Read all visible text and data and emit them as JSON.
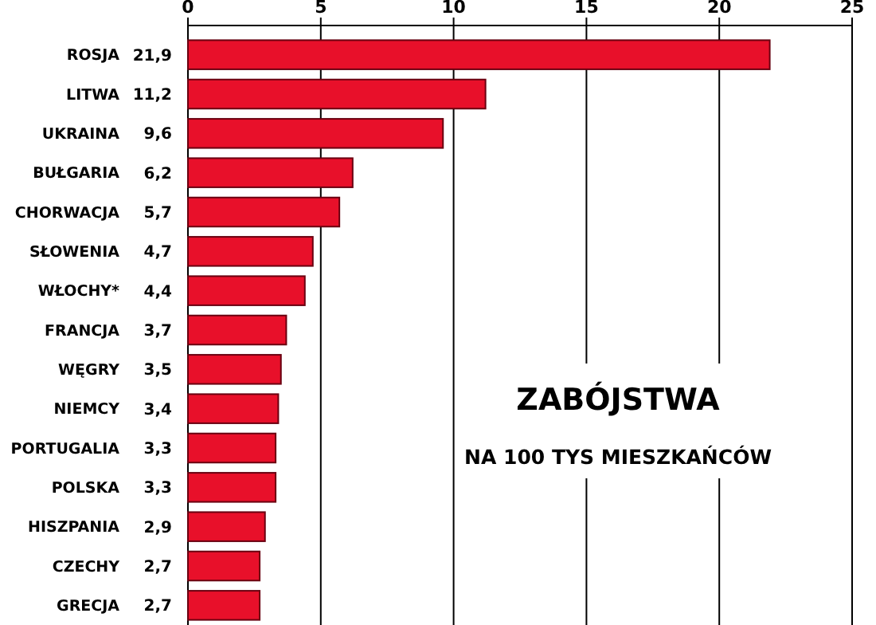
{
  "chart_data": {
    "type": "bar",
    "orientation": "horizontal",
    "title": "ZABÓJSTWA",
    "subtitle": "NA 100 TYS MIESZKAŃCÓW",
    "categories": [
      "ROSJA",
      "LITWA",
      "UKRAINA",
      "BUŁGARIA",
      "CHORWACJA",
      "SŁOWENIA",
      "WŁOCHY*",
      "FRANCJA",
      "WĘGRY",
      "NIEMCY",
      "PORTUGALIA",
      "POLSKA",
      "HISZPANIA",
      "CZECHY",
      "GRECJA"
    ],
    "values": [
      21.9,
      11.2,
      9.6,
      6.2,
      5.7,
      4.7,
      4.4,
      3.7,
      3.5,
      3.4,
      3.3,
      3.3,
      2.9,
      2.7,
      2.7
    ],
    "value_labels": [
      "21,9",
      "11,2",
      "9,6",
      "6,2",
      "5,7",
      "4,7",
      "4,4",
      "3,7",
      "3,5",
      "3,4",
      "3,3",
      "3,3",
      "2,9",
      "2,7",
      "2,7"
    ],
    "color": "#e8102a",
    "xlim": [
      0,
      25
    ],
    "xticks": [
      0,
      5,
      10,
      15,
      20,
      25
    ],
    "grid": "x"
  }
}
